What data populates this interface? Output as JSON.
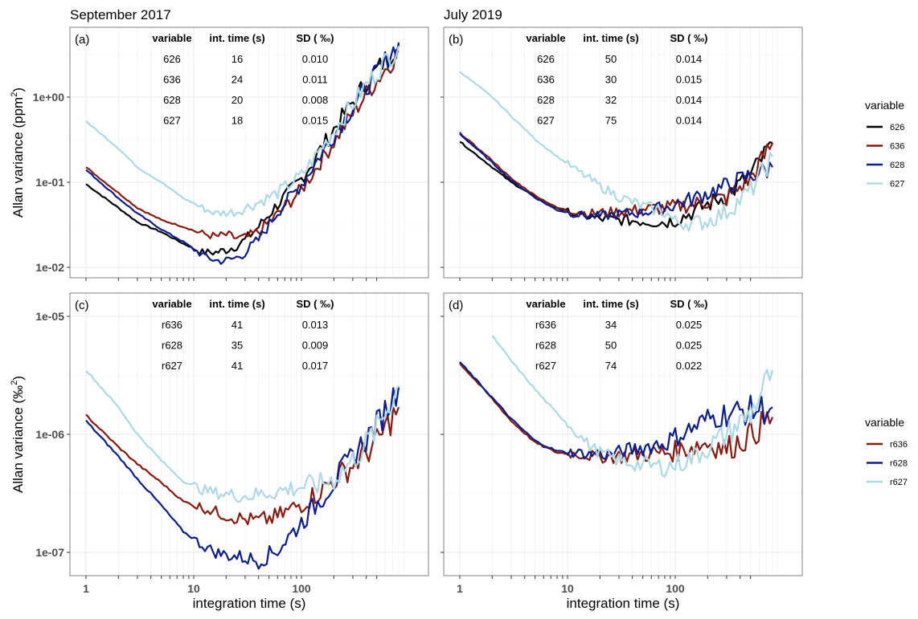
{
  "figure": {
    "column_titles": [
      "September 2017",
      "July 2019"
    ],
    "xlabel": "integration time (s)",
    "ylabel_top": "Allan variance (ppm²)",
    "ylabel_top_base": "Allan variance (ppm",
    "ylabel_top_sup": "2",
    "ylabel_bottom_base": "Allan variance (‰",
    "ylabel_bottom_sup": "2",
    "x_ticks": [
      "1",
      "10",
      "100"
    ],
    "y_ticks_top": [
      "1e+00",
      "1e-01",
      "1e-02"
    ],
    "y_ticks_bottom": [
      "1e-05",
      "1e-06",
      "1e-07"
    ],
    "table_headers": [
      "variable",
      "int. time (s)",
      "SD ( ‰)"
    ],
    "legends": [
      {
        "title": "variable",
        "items": [
          {
            "label": "626",
            "color": "#000000"
          },
          {
            "label": "636",
            "color": "#8B1A0E"
          },
          {
            "label": "628",
            "color": "#0B1E8F"
          },
          {
            "label": "627",
            "color": "#ADD8E6"
          }
        ]
      },
      {
        "title": "variable",
        "items": [
          {
            "label": "r636",
            "color": "#8B1A0E"
          },
          {
            "label": "r628",
            "color": "#0B1E8F"
          },
          {
            "label": "r627",
            "color": "#ADD8E6"
          }
        ]
      }
    ]
  },
  "chart_data": [
    {
      "type": "line",
      "panel": "(a)",
      "title": "September 2017",
      "xlabel": "integration time (s)",
      "ylabel": "Allan variance (ppm2)",
      "xscale": "log",
      "yscale": "log",
      "xlim": [
        0.85,
        1000
      ],
      "ylim": [
        0.0075,
        4.5
      ],
      "table": [
        [
          "626",
          "16",
          "0.010"
        ],
        [
          "636",
          "24",
          "0.011"
        ],
        [
          "628",
          "20",
          "0.008"
        ],
        [
          "627",
          "18",
          "0.015"
        ]
      ],
      "x": [
        1,
        2,
        3,
        5,
        8,
        12,
        16,
        20,
        25,
        30,
        40,
        60,
        100,
        200,
        400,
        800
      ],
      "series": [
        {
          "name": "626",
          "color": "#000000",
          "values": [
            0.095,
            0.05,
            0.034,
            0.026,
            0.019,
            0.015,
            0.015,
            0.016,
            0.018,
            0.021,
            0.03,
            0.055,
            0.11,
            0.42,
            1.5,
            4.2
          ]
        },
        {
          "name": "636",
          "color": "#8B1A0E",
          "values": [
            0.15,
            0.075,
            0.05,
            0.036,
            0.03,
            0.025,
            0.023,
            0.024,
            0.022,
            0.022,
            0.026,
            0.042,
            0.082,
            0.3,
            1.1,
            3.4
          ]
        },
        {
          "name": "628",
          "color": "#0B1E8F",
          "values": [
            0.14,
            0.065,
            0.043,
            0.028,
            0.02,
            0.014,
            0.012,
            0.012,
            0.013,
            0.015,
            0.021,
            0.045,
            0.095,
            0.36,
            1.3,
            4.4
          ]
        },
        {
          "name": "627",
          "color": "#ADD8E6",
          "values": [
            0.52,
            0.25,
            0.15,
            0.1,
            0.065,
            0.05,
            0.043,
            0.044,
            0.045,
            0.05,
            0.058,
            0.075,
            0.12,
            0.4,
            1.4,
            4.0
          ]
        }
      ]
    },
    {
      "type": "line",
      "panel": "(b)",
      "title": "July 2019",
      "xlabel": "integration time (s)",
      "ylabel": "Allan variance (ppm2)",
      "xscale": "log",
      "yscale": "log",
      "xlim": [
        0.85,
        1000
      ],
      "ylim": [
        0.0075,
        4.5
      ],
      "table": [
        [
          "626",
          "50",
          "0.014"
        ],
        [
          "636",
          "30",
          "0.015"
        ],
        [
          "628",
          "32",
          "0.014"
        ],
        [
          "627",
          "75",
          "0.014"
        ]
      ],
      "x": [
        1,
        2,
        3,
        5,
        8,
        12,
        16,
        20,
        30,
        50,
        80,
        100,
        150,
        200,
        300,
        500,
        800
      ],
      "series": [
        {
          "name": "626",
          "color": "#000000",
          "values": [
            0.3,
            0.15,
            0.1,
            0.068,
            0.05,
            0.042,
            0.039,
            0.037,
            0.036,
            0.035,
            0.034,
            0.036,
            0.045,
            0.055,
            0.07,
            0.12,
            0.29
          ]
        },
        {
          "name": "636",
          "color": "#8B1A0E",
          "values": [
            0.38,
            0.18,
            0.11,
            0.07,
            0.05,
            0.045,
            0.043,
            0.044,
            0.045,
            0.048,
            0.05,
            0.052,
            0.055,
            0.06,
            0.065,
            0.11,
            0.29
          ]
        },
        {
          "name": "628",
          "color": "#0B1E8F",
          "values": [
            0.37,
            0.17,
            0.105,
            0.066,
            0.047,
            0.042,
            0.04,
            0.04,
            0.042,
            0.045,
            0.05,
            0.055,
            0.065,
            0.075,
            0.09,
            0.12,
            0.15
          ]
        },
        {
          "name": "627",
          "color": "#ADD8E6",
          "values": [
            2.0,
            1.0,
            0.6,
            0.32,
            0.2,
            0.14,
            0.11,
            0.09,
            0.068,
            0.052,
            0.045,
            0.034,
            0.033,
            0.035,
            0.045,
            0.08,
            0.2
          ]
        }
      ]
    },
    {
      "type": "line",
      "panel": "(c)",
      "title": "",
      "xlabel": "integration time (s)",
      "ylabel": "Allan variance (permil2)",
      "xscale": "log",
      "yscale": "log",
      "xlim": [
        0.85,
        1000
      ],
      "ylim": [
        6.6e-08,
        1.45e-05
      ],
      "table": [
        [
          "r636",
          "41",
          "0.013"
        ],
        [
          "r628",
          "35",
          "0.009"
        ],
        [
          "r627",
          "41",
          "0.017"
        ]
      ],
      "x": [
        1,
        2,
        3,
        5,
        8,
        12,
        16,
        20,
        30,
        40,
        60,
        100,
        150,
        200,
        300,
        500,
        800
      ],
      "series": [
        {
          "name": "r636",
          "color": "#8B1A0E",
          "values": [
            1.45e-06,
            7.8e-07,
            5.6e-07,
            3.9e-07,
            2.7e-07,
            2.4e-07,
            2.2e-07,
            2.05e-07,
            1.9e-07,
            1.85e-07,
            2e-07,
            2.6e-07,
            3.3e-07,
            4.1e-07,
            5.5e-07,
            8.5e-07,
            1.7e-06
          ]
        },
        {
          "name": "r628",
          "color": "#0B1E8F",
          "values": [
            1.3e-06,
            6.5e-07,
            4.2e-07,
            2.5e-07,
            1.5e-07,
            1.15e-07,
            1e-07,
            9.5e-08,
            9e-08,
            8.5e-08,
            1.05e-07,
            1.8e-07,
            2.8e-07,
            4e-07,
            6.5e-07,
            1.2e-06,
            2.5e-06
          ]
        },
        {
          "name": "r627",
          "color": "#ADD8E6",
          "values": [
            3.5e-06,
            1.7e-06,
            1e-06,
            6e-07,
            4e-07,
            3.4e-07,
            3.2e-07,
            3.1e-07,
            3e-07,
            3.1e-07,
            3.3e-07,
            3.6e-07,
            3.8e-07,
            4.2e-07,
            6e-07,
            1.1e-06,
            2.6e-06
          ]
        }
      ]
    },
    {
      "type": "line",
      "panel": "(d)",
      "title": "",
      "xlabel": "integration time (s)",
      "ylabel": "Allan variance (permil2)",
      "xscale": "log",
      "yscale": "log",
      "xlim": [
        0.85,
        1000
      ],
      "ylim": [
        6.6e-08,
        1.45e-05
      ],
      "table": [
        [
          "r636",
          "34",
          "0.025"
        ],
        [
          "r628",
          "50",
          "0.025"
        ],
        [
          "r627",
          "74",
          "0.022"
        ]
      ],
      "x": [
        1,
        2,
        3,
        5,
        8,
        12,
        16,
        20,
        30,
        50,
        80,
        100,
        150,
        200,
        300,
        500,
        800
      ],
      "series": [
        {
          "name": "r636",
          "color": "#8B1A0E",
          "values": [
            4e-06,
            2e-06,
            1.3e-06,
            8.5e-07,
            7e-07,
            6.8e-07,
            6.6e-07,
            6.5e-07,
            6.5e-07,
            6.8e-07,
            7e-07,
            7.2e-07,
            8e-07,
            8.5e-07,
            7.5e-07,
            1e-06,
            1.4e-06
          ]
        },
        {
          "name": "r628",
          "color": "#0B1E8F",
          "values": [
            4.1e-06,
            2.05e-06,
            1.35e-06,
            8.8e-07,
            7.2e-07,
            7e-07,
            6.8e-07,
            6.7e-07,
            7e-07,
            7.8e-07,
            8.5e-07,
            9.5e-07,
            1.15e-06,
            1.35e-06,
            1.5e-06,
            1.6e-06,
            1.7e-06
          ]
        },
        {
          "name": "r627",
          "color": "#ADD8E6",
          "values": [
            null,
            6.8e-06,
            4.2e-06,
            2.4e-06,
            1.5e-06,
            1.05e-06,
            8e-07,
            7e-07,
            6e-07,
            5.5e-07,
            5.3e-07,
            5.5e-07,
            6.5e-07,
            7.8e-07,
            1e-06,
            1.5e-06,
            3.5e-06
          ]
        }
      ]
    }
  ]
}
